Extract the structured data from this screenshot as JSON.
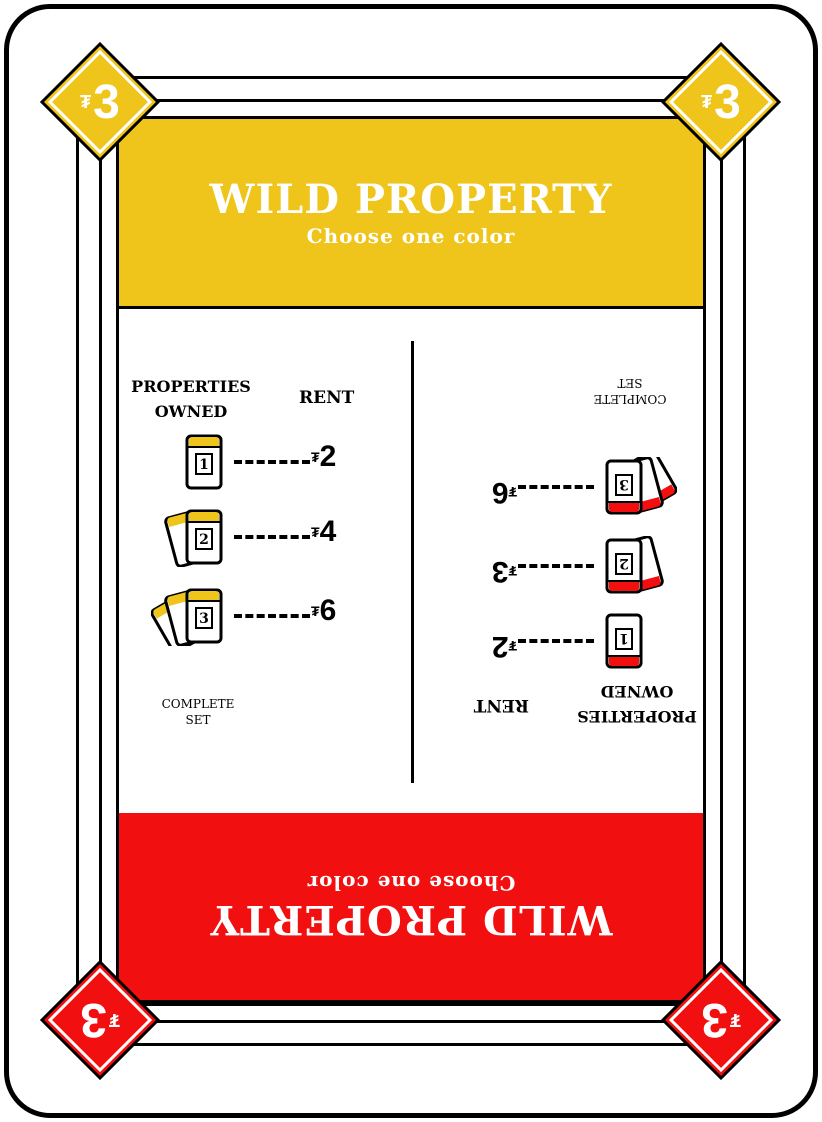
{
  "card": {
    "value": "3",
    "currency_symbol": "₮",
    "colors": {
      "yellow": "#efc51c",
      "red": "#f20f0f",
      "outline": "#000000"
    }
  },
  "top_band": {
    "title": "WILD PROPERTY",
    "subtitle": "Choose one color"
  },
  "bottom_band": {
    "title": "WILD PROPERTY",
    "subtitle": "Choose one color"
  },
  "rent_table": {
    "header_properties_line1": "PROPERTIES",
    "header_properties_line2": "OWNED",
    "header_rent": "RENT",
    "rows": [
      {
        "count": "1",
        "rent": "2"
      },
      {
        "count": "2",
        "rent": "4"
      },
      {
        "count": "3",
        "rent": "6"
      }
    ],
    "complete_set_line1": "COMPLETE",
    "complete_set_line2": "SET"
  },
  "rent_table_inverted": {
    "rows": [
      {
        "count": "1",
        "rent": "2"
      },
      {
        "count": "2",
        "rent": "3"
      },
      {
        "count": "3",
        "rent": "6"
      }
    ]
  }
}
